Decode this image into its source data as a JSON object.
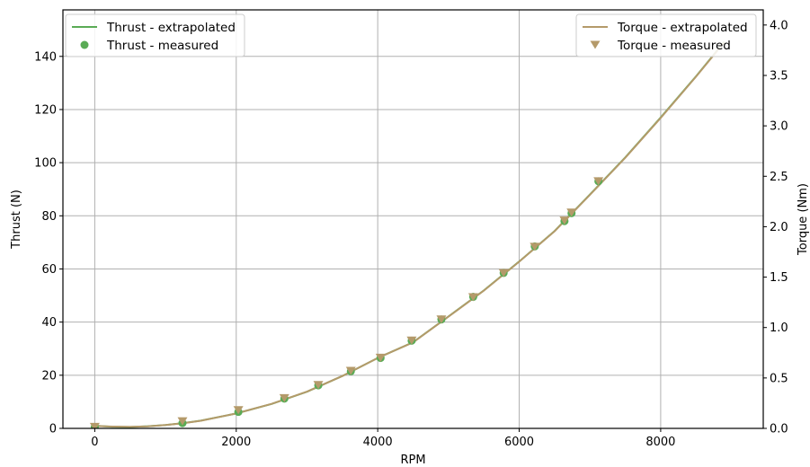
{
  "chart_data": {
    "type": "line",
    "xlabel": "RPM",
    "ylabel_left": "Thrust (N)",
    "ylabel_right": "Torque (Nm)",
    "xlim": [
      -450,
      9450
    ],
    "ylim_left": [
      0,
      157.5
    ],
    "ylim_right": [
      0,
      4.15
    ],
    "x_ticks": [
      0,
      2000,
      4000,
      6000,
      8000
    ],
    "y_ticks_left": [
      0,
      20,
      40,
      60,
      80,
      100,
      120,
      140
    ],
    "y_ticks_right": [
      0.0,
      0.5,
      1.0,
      1.5,
      2.0,
      2.5,
      3.0,
      3.5,
      4.0
    ],
    "grid": true,
    "legends": [
      {
        "placement": "top-left",
        "entries": [
          "Thrust - extrapolated",
          "Thrust - measured"
        ]
      },
      {
        "placement": "top-right",
        "entries": [
          "Torque - extrapolated",
          "Torque - measured"
        ]
      }
    ],
    "series": [
      {
        "name": "Thrust - extrapolated",
        "kind": "line",
        "axis": "left",
        "color": "#5aab55",
        "x": [
          0,
          250,
          500,
          750,
          1000,
          1250,
          1500,
          2000,
          2500,
          3000,
          3500,
          4000,
          4500,
          5000,
          5500,
          6000,
          6500,
          7000,
          7500,
          8000,
          8500,
          8900
        ],
        "y": [
          1.0,
          0.6,
          0.5,
          0.8,
          1.3,
          2.0,
          2.9,
          5.6,
          9.2,
          13.8,
          19.7,
          26.5,
          32.4,
          42.1,
          51.9,
          62.8,
          74.3,
          88.0,
          102.0,
          117.0,
          132.5,
          145.5
        ]
      },
      {
        "name": "Thrust - measured",
        "kind": "scatter",
        "marker": "circle",
        "axis": "left",
        "color": "#5aab55",
        "x": [
          0,
          1240,
          2030,
          2680,
          3160,
          3620,
          4040,
          4480,
          4900,
          5350,
          5780,
          6220,
          6640,
          6740,
          7120
        ],
        "y": [
          0.5,
          2.0,
          6.2,
          11.2,
          16.2,
          21.5,
          26.5,
          33.0,
          41.0,
          49.5,
          58.5,
          68.5,
          78.0,
          81.0,
          93.0
        ]
      },
      {
        "name": "Torque - extrapolated",
        "kind": "line",
        "axis": "right",
        "color": "#b49a6a",
        "x": [
          0,
          250,
          500,
          750,
          1000,
          1250,
          1500,
          2000,
          2500,
          3000,
          3500,
          4000,
          4500,
          5000,
          5500,
          6000,
          6500,
          7000,
          7500,
          8000,
          8500,
          8900
        ],
        "y": [
          0.025,
          0.018,
          0.015,
          0.02,
          0.033,
          0.052,
          0.076,
          0.148,
          0.243,
          0.364,
          0.519,
          0.698,
          0.853,
          1.108,
          1.366,
          1.653,
          1.955,
          2.316,
          2.684,
          3.079,
          3.487,
          3.829
        ]
      },
      {
        "name": "Torque - measured",
        "kind": "scatter",
        "marker": "triangle-down",
        "axis": "right",
        "color": "#b49a6a",
        "x": [
          0,
          1240,
          2030,
          2680,
          3160,
          3620,
          4040,
          4480,
          4900,
          5350,
          5780,
          6220,
          6640,
          6740,
          7120
        ],
        "y": [
          0.015,
          0.07,
          0.18,
          0.3,
          0.43,
          0.57,
          0.7,
          0.87,
          1.08,
          1.3,
          1.54,
          1.8,
          2.06,
          2.14,
          2.45
        ]
      }
    ]
  }
}
